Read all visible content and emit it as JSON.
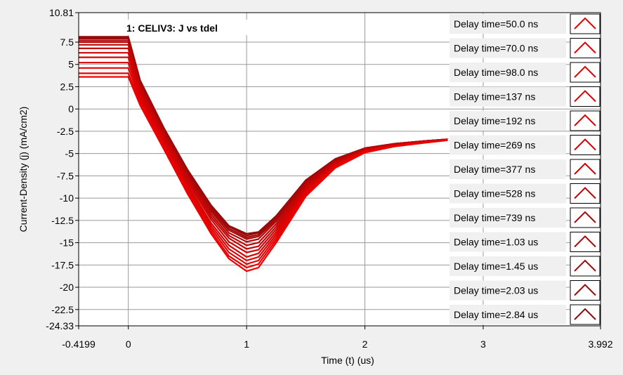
{
  "chart_data": {
    "type": "line",
    "title": "1: CELIV3: J vs tdel",
    "xlabel": "Time (t) (us)",
    "ylabel": "Current-Density (j) (mA/cm2)",
    "xlim": [
      -0.4199,
      3.992
    ],
    "ylim": [
      10.81,
      -24.33
    ],
    "y_inverted": true,
    "grid": true,
    "legend_position": "right",
    "x_ticks": [
      {
        "value": -0.4199,
        "label": "-0.4199"
      },
      {
        "value": 0,
        "label": "0"
      },
      {
        "value": 1,
        "label": "1"
      },
      {
        "value": 2,
        "label": "2"
      },
      {
        "value": 3,
        "label": "3"
      },
      {
        "value": 3.992,
        "label": "3.992"
      }
    ],
    "y_ticks": [
      {
        "value": -24.33,
        "label": "-24.33"
      },
      {
        "value": -22.5,
        "label": "-22.5"
      },
      {
        "value": -20,
        "label": "-20"
      },
      {
        "value": -17.5,
        "label": "-17.5"
      },
      {
        "value": -15,
        "label": "-15"
      },
      {
        "value": -12.5,
        "label": "-12.5"
      },
      {
        "value": -10,
        "label": "-10"
      },
      {
        "value": -7.5,
        "label": "-7.5"
      },
      {
        "value": -5,
        "label": "-5"
      },
      {
        "value": -2.5,
        "label": "-2.5"
      },
      {
        "value": 0,
        "label": "0"
      },
      {
        "value": 2.5,
        "label": "2.5"
      },
      {
        "value": 5,
        "label": "5"
      },
      {
        "value": 7.5,
        "label": "7.5"
      },
      {
        "value": 10.81,
        "label": "10.81"
      }
    ],
    "x": [
      -0.4199,
      -0.2,
      0,
      0.1,
      0.3,
      0.5,
      0.7,
      0.85,
      1.0,
      1.1,
      1.25,
      1.5,
      1.75,
      2.0,
      2.25,
      2.5,
      2.7
    ],
    "series": [
      {
        "name": "Delay time=50.0 ns",
        "color": "#ee0000",
        "values": [
          3.6,
          3.6,
          3.6,
          0.4,
          -4.5,
          -9.5,
          -14.0,
          -16.8,
          -18.2,
          -17.8,
          -15.0,
          -9.8,
          -6.6,
          -4.9,
          -4.2,
          -3.8,
          -3.5
        ]
      },
      {
        "name": "Delay time=70.0 ns",
        "color": "#e80000",
        "values": [
          4.0,
          4.0,
          4.0,
          0.7,
          -4.3,
          -9.2,
          -13.7,
          -16.5,
          -17.8,
          -17.4,
          -14.7,
          -9.6,
          -6.5,
          -4.8,
          -4.2,
          -3.8,
          -3.5
        ]
      },
      {
        "name": "Delay time=98.0 ns",
        "color": "#e20202",
        "values": [
          4.6,
          4.6,
          4.6,
          1.0,
          -4.0,
          -9.0,
          -13.4,
          -16.1,
          -17.4,
          -17.0,
          -14.4,
          -9.4,
          -6.4,
          -4.8,
          -4.1,
          -3.8,
          -3.5
        ]
      },
      {
        "name": "Delay time=137 ns",
        "color": "#dc0202",
        "values": [
          5.2,
          5.2,
          5.2,
          1.3,
          -3.8,
          -8.7,
          -13.1,
          -15.7,
          -17.0,
          -16.6,
          -14.1,
          -9.2,
          -6.3,
          -4.7,
          -4.1,
          -3.7,
          -3.5
        ]
      },
      {
        "name": "Delay time=192 ns",
        "color": "#d50303",
        "values": [
          5.8,
          5.8,
          5.8,
          1.6,
          -3.5,
          -8.5,
          -12.8,
          -15.3,
          -16.6,
          -16.2,
          -13.8,
          -9.0,
          -6.2,
          -4.7,
          -4.1,
          -3.7,
          -3.5
        ]
      },
      {
        "name": "Delay time=269 ns",
        "color": "#cd0404",
        "values": [
          6.3,
          6.3,
          6.3,
          1.9,
          -3.3,
          -8.2,
          -12.4,
          -14.9,
          -16.1,
          -15.8,
          -13.5,
          -8.9,
          -6.1,
          -4.6,
          -4.0,
          -3.7,
          -3.4
        ]
      },
      {
        "name": "Delay time=377 ns",
        "color": "#c50505",
        "values": [
          6.8,
          6.8,
          6.8,
          2.2,
          -3.0,
          -7.9,
          -12.1,
          -14.5,
          -15.7,
          -15.4,
          -13.2,
          -8.7,
          -6.0,
          -4.6,
          -4.0,
          -3.7,
          -3.4
        ]
      },
      {
        "name": "Delay time=528 ns",
        "color": "#bc0606",
        "values": [
          7.2,
          7.2,
          7.2,
          2.5,
          -2.8,
          -7.6,
          -11.8,
          -14.2,
          -15.3,
          -15.0,
          -12.9,
          -8.5,
          -5.9,
          -4.5,
          -4.0,
          -3.6,
          -3.4
        ]
      },
      {
        "name": "Delay time=739 ns",
        "color": "#b30707",
        "values": [
          7.5,
          7.5,
          7.5,
          2.7,
          -2.6,
          -7.4,
          -11.5,
          -13.9,
          -14.9,
          -14.6,
          -12.6,
          -8.4,
          -5.8,
          -4.5,
          -3.9,
          -3.6,
          -3.4
        ]
      },
      {
        "name": "Delay time=1.03 us",
        "color": "#aa0808",
        "values": [
          7.7,
          7.7,
          7.7,
          2.9,
          -2.4,
          -7.2,
          -11.3,
          -13.6,
          -14.6,
          -14.3,
          -12.4,
          -8.2,
          -5.7,
          -4.4,
          -3.9,
          -3.6,
          -3.4
        ]
      },
      {
        "name": "Delay time=1.45 us",
        "color": "#a00909",
        "values": [
          7.9,
          7.9,
          7.9,
          3.0,
          -2.3,
          -7.0,
          -11.1,
          -13.4,
          -14.4,
          -14.1,
          -12.2,
          -8.1,
          -5.7,
          -4.4,
          -3.9,
          -3.6,
          -3.4
        ]
      },
      {
        "name": "Delay time=2.03 us",
        "color": "#960a0a",
        "values": [
          8.0,
          8.0,
          8.0,
          3.1,
          -2.2,
          -6.9,
          -10.9,
          -13.2,
          -14.2,
          -13.9,
          -12.1,
          -8.0,
          -5.6,
          -4.4,
          -3.9,
          -3.6,
          -3.4
        ]
      },
      {
        "name": "Delay time=2.84 us",
        "color": "#8c0b0b",
        "values": [
          8.1,
          8.1,
          8.1,
          3.2,
          -2.1,
          -6.8,
          -10.8,
          -13.1,
          -14.0,
          -13.8,
          -12.0,
          -8.0,
          -5.6,
          -4.4,
          -3.9,
          -3.6,
          -3.4
        ]
      }
    ]
  }
}
